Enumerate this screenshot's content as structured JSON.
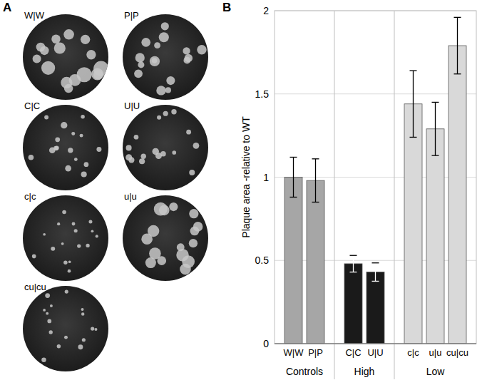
{
  "panels": {
    "a": {
      "label": "A",
      "images": [
        "W|W",
        "P|P",
        "C|C",
        "U|U",
        "c|c",
        "u|u",
        "cu|cu"
      ]
    },
    "b": {
      "label": "B"
    }
  },
  "chart_data": {
    "type": "bar",
    "y_label": "Plaque area -relative to WT",
    "categories": [
      "W|W",
      "P|P",
      "C|C",
      "U|U",
      "c|c",
      "u|u",
      "cu|cu"
    ],
    "values": [
      1.0,
      0.98,
      0.48,
      0.43,
      1.44,
      1.29,
      1.79
    ],
    "errors": [
      0.12,
      0.13,
      0.05,
      0.055,
      0.2,
      0.16,
      0.17
    ],
    "colors": [
      "#a6a6a6",
      "#a6a6a6",
      "#1a1a1a",
      "#1a1a1a",
      "#d9d9d9",
      "#d9d9d9",
      "#d9d9d9"
    ],
    "groups": [
      {
        "name": "Controls",
        "count": 2
      },
      {
        "name": "High",
        "count": 2
      },
      {
        "name": "Low",
        "count": 3
      }
    ],
    "ylim": [
      0,
      2
    ],
    "yticks": [
      0,
      0.5,
      1,
      1.5,
      2
    ],
    "grid": true
  }
}
